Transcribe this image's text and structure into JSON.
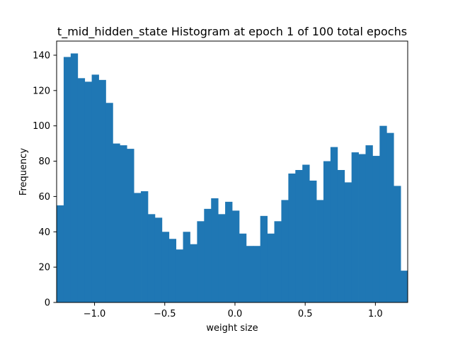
{
  "chart_data": {
    "type": "bar",
    "title": "t_mid_hidden_state Histogram at epoch 1 of 100 total epochs",
    "xlabel": "weight size",
    "ylabel": "Frequency",
    "xlim": [
      -1.27,
      1.23
    ],
    "ylim": [
      0,
      148
    ],
    "bin_edges": [
      -1.27,
      -1.22,
      -1.17,
      -1.12,
      -1.07,
      -1.02,
      -0.97,
      -0.92,
      -0.87,
      -0.82,
      -0.77,
      -0.72,
      -0.67,
      -0.62,
      -0.57,
      -0.52,
      -0.47,
      -0.42,
      -0.37,
      -0.32,
      -0.27,
      -0.22,
      -0.17,
      -0.12,
      -0.07,
      -0.02,
      0.03,
      0.08,
      0.13,
      0.18,
      0.23,
      0.28,
      0.33,
      0.38,
      0.43,
      0.48,
      0.53,
      0.58,
      0.63,
      0.68,
      0.73,
      0.78,
      0.83,
      0.88,
      0.93,
      0.98,
      1.03,
      1.08,
      1.13,
      1.18,
      1.23
    ],
    "values": [
      55,
      139,
      141,
      127,
      125,
      129,
      126,
      113,
      90,
      89,
      87,
      62,
      63,
      50,
      48,
      40,
      36,
      30,
      40,
      33,
      46,
      53,
      59,
      50,
      57,
      52,
      39,
      32,
      32,
      49,
      39,
      46,
      58,
      73,
      75,
      78,
      69,
      58,
      80,
      88,
      75,
      68,
      85,
      84,
      89,
      83,
      100,
      96,
      66,
      18
    ],
    "xticks": [
      -1.0,
      -0.5,
      0.0,
      0.5,
      1.0
    ],
    "xtick_labels": [
      "−1.0",
      "−0.5",
      "0.0",
      "0.5",
      "1.0"
    ],
    "yticks": [
      0,
      20,
      40,
      60,
      80,
      100,
      120,
      140
    ],
    "ytick_labels": [
      "0",
      "20",
      "40",
      "60",
      "80",
      "100",
      "120",
      "140"
    ],
    "bar_color": "#1f77b4",
    "grid": false,
    "legend": "none"
  }
}
